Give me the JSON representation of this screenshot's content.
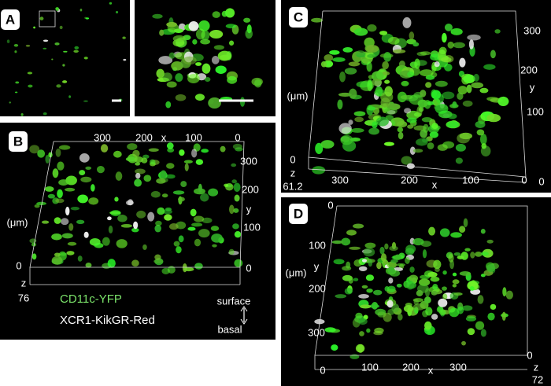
{
  "panels": [
    {
      "label": "A"
    },
    {
      "label": "B",
      "texts": [
        "300",
        "200",
        "x",
        "100",
        "0",
        "300",
        "200",
        "y",
        "100",
        "0",
        "(μm)",
        "0",
        "z",
        "76",
        "surface",
        "basal"
      ],
      "legend": [
        "CD11c-YFP",
        "XCR1-KikGR-Red"
      ]
    },
    {
      "label": "C",
      "texts": [
        "300",
        "200",
        "y",
        "100",
        "0",
        "(μm)",
        "0",
        "z",
        "61.2",
        "300",
        "200",
        "x",
        "100",
        "0"
      ]
    },
    {
      "label": "D",
      "texts": [
        "0",
        "100",
        "(μm)",
        "y",
        "200",
        "300",
        "0",
        "100",
        "200",
        "x",
        "300",
        "0",
        "z",
        "72"
      ]
    }
  ]
}
